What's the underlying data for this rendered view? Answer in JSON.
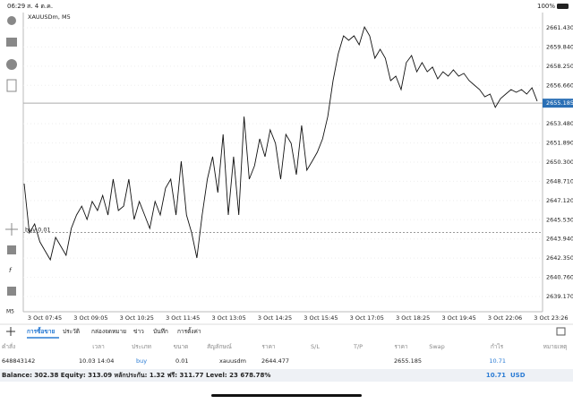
{
  "status_bar": {
    "time": "06:29",
    "date": "ส. 4 ต.ค.",
    "battery": "100%"
  },
  "chart": {
    "symbol": "XAUUSDm, M5",
    "price_ticks": [
      {
        "value": 2661.43,
        "label": "2661.430"
      },
      {
        "value": 2659.84,
        "label": "2659.840"
      },
      {
        "value": 2658.25,
        "label": "2658.250"
      },
      {
        "value": 2656.66,
        "label": "2656.660"
      },
      {
        "value": 2653.48,
        "label": "2653.480"
      },
      {
        "value": 2651.89,
        "label": "2651.890"
      },
      {
        "value": 2650.3,
        "label": "2650.300"
      },
      {
        "value": 2648.71,
        "label": "2648.710"
      },
      {
        "value": 2647.12,
        "label": "2647.120"
      },
      {
        "value": 2645.53,
        "label": "2645.530"
      },
      {
        "value": 2643.94,
        "label": "2643.940"
      },
      {
        "value": 2642.35,
        "label": "2642.350"
      },
      {
        "value": 2640.76,
        "label": "2640.760"
      },
      {
        "value": 2639.17,
        "label": "2639.170"
      }
    ],
    "current_price": 2655.185,
    "buy_line": {
      "label": "buy 0.01",
      "value": 2644.477
    },
    "time_labels": [
      "3 Oct 07:45",
      "3 Oct 09:05",
      "3 Oct 10:25",
      "3 Oct 11:45",
      "3 Oct 13:05",
      "3 Oct 14:25",
      "3 Oct 15:45",
      "3 Oct 17:05",
      "3 Oct 18:25",
      "3 Oct 19:45",
      "3 Oct 22:06",
      "3 Oct 23:26"
    ],
    "values": [
      2648.52,
      2644.44,
      2645.18,
      2643.7,
      2642.95,
      2642.21,
      2644.07,
      2643.33,
      2642.58,
      2644.81,
      2645.92,
      2646.66,
      2645.55,
      2647.04,
      2646.29,
      2647.55,
      2645.92,
      2648.89,
      2646.29,
      2646.66,
      2648.89,
      2645.55,
      2647.04,
      2645.92,
      2644.81,
      2647.04,
      2645.92,
      2648.15,
      2648.89,
      2645.92,
      2650.37,
      2645.92,
      2644.44,
      2642.36,
      2645.92,
      2648.89,
      2650.75,
      2647.78,
      2652.6,
      2645.92,
      2650.75,
      2645.92,
      2654.08,
      2648.89,
      2650.0,
      2652.23,
      2650.75,
      2652.97,
      2651.86,
      2648.89,
      2652.6,
      2651.86,
      2649.26,
      2653.34,
      2649.63,
      2650.37,
      2651.12,
      2652.23,
      2654.08,
      2657.05,
      2659.28,
      2660.76,
      2660.39,
      2660.76,
      2660.02,
      2661.5,
      2660.76,
      2658.91,
      2659.65,
      2658.91,
      2657.05,
      2657.42,
      2656.31,
      2658.54,
      2659.13,
      2657.79,
      2658.54,
      2657.79,
      2658.17,
      2657.2,
      2657.79,
      2657.42,
      2657.94,
      2657.42,
      2657.65,
      2657.05,
      2656.68,
      2656.31,
      2655.72,
      2655.94,
      2654.83,
      2655.57,
      2655.94,
      2656.31,
      2656.09,
      2656.31,
      2655.94,
      2656.46,
      2655.35
    ]
  },
  "tabs": [
    "การซื้อขาย",
    "ประวัติ",
    "กล่องจดหมาย",
    "ข่าว",
    "บันทึก",
    "การตั้งค่า"
  ],
  "table": {
    "headers": [
      "คำสั่ง",
      "เวลา",
      "ประเภท",
      "ขนาด",
      "สัญลักษณ์",
      "ราคา",
      "S/L",
      "T/P",
      "ราคา",
      "Swap",
      "กำไร",
      "หมายเหตุ"
    ],
    "rows": [
      [
        "648843142",
        "10.03 14:04",
        "buy",
        "0.01",
        "xauusdm",
        "2644.477",
        "",
        "",
        "2655.185",
        "",
        "10.71",
        ""
      ]
    ]
  },
  "summary": {
    "text": "Balance: 302.38 Equity: 313.09 หลักประกัน: 1.32 ฟรี: 311.77 Level: 23 678.78%",
    "profit": "10.71",
    "currency": "USD"
  }
}
